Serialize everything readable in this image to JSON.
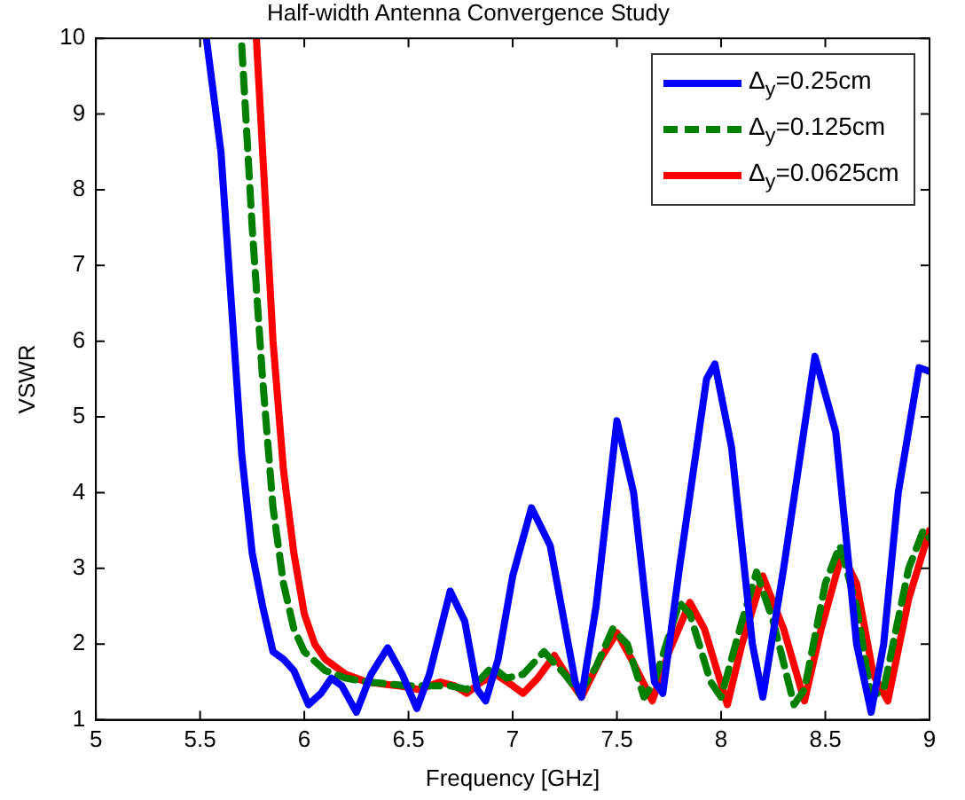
{
  "chart_data": {
    "type": "line",
    "title": "Half-width Antenna Convergence Study",
    "xlabel": "Frequency [GHz]",
    "ylabel": "VSWR",
    "xlim": [
      5,
      9
    ],
    "xticks": [
      5,
      5.5,
      6,
      6.5,
      7,
      7.5,
      8,
      8.5,
      9
    ],
    "ylim": [
      1,
      10
    ],
    "yticks": [
      1,
      2,
      3,
      4,
      5,
      6,
      7,
      8,
      9,
      10
    ],
    "grid": false,
    "legend": "top right",
    "marker": "none",
    "series": [
      {
        "name": "Δ$_{y}$=0.25cm",
        "color": "#0000ff",
        "line_style": "solid",
        "x": [
          5.53,
          5.6,
          5.65,
          5.7,
          5.75,
          5.8,
          5.85,
          5.9,
          5.95,
          6.02,
          6.08,
          6.13,
          6.18,
          6.25,
          6.32,
          6.4,
          6.47,
          6.54,
          6.6,
          6.7,
          6.77,
          6.83,
          6.87,
          6.93,
          7.0,
          7.09,
          7.18,
          7.3,
          7.33,
          7.4,
          7.5,
          7.58,
          7.68,
          7.72,
          7.8,
          7.93,
          7.97,
          8.05,
          8.15,
          8.2,
          8.3,
          8.45,
          8.55,
          8.65,
          8.72,
          8.78,
          8.85,
          8.95,
          9
        ],
        "values": [
          10,
          8.5,
          6.5,
          4.5,
          3.2,
          2.5,
          1.9,
          1.8,
          1.65,
          1.2,
          1.35,
          1.55,
          1.45,
          1.1,
          1.6,
          1.95,
          1.6,
          1.15,
          1.6,
          2.7,
          2.3,
          1.4,
          1.25,
          1.8,
          2.9,
          3.8,
          3.3,
          1.5,
          1.3,
          2.5,
          4.95,
          4,
          1.5,
          1.35,
          3,
          5.5,
          5.7,
          4.6,
          2,
          1.3,
          3,
          5.8,
          4.8,
          2,
          1.1,
          2,
          4,
          5.65,
          5.6
        ]
      },
      {
        "name": "Δ$_{y}$=0.125cm",
        "color": "#007f00",
        "line_style": "dashed",
        "x": [
          5.7,
          5.75,
          5.8,
          5.85,
          5.9,
          5.95,
          6.0,
          6.1,
          6.2,
          6.3,
          6.5,
          6.7,
          6.78,
          6.85,
          6.9,
          6.97,
          7.05,
          7.15,
          7.25,
          7.32,
          7.4,
          7.48,
          7.55,
          7.63,
          7.68,
          7.8,
          7.85,
          7.95,
          8.0,
          8.1,
          8.17,
          8.25,
          8.35,
          8.4,
          8.5,
          8.57,
          8.65,
          8.72,
          8.78,
          8.9,
          8.97,
          9
        ],
        "values": [
          9.9,
          7.5,
          5.5,
          3.8,
          2.8,
          2.2,
          1.9,
          1.65,
          1.55,
          1.5,
          1.45,
          1.45,
          1.4,
          1.55,
          1.7,
          1.55,
          1.6,
          1.9,
          1.6,
          1.35,
          1.7,
          2.2,
          2,
          1.3,
          1.5,
          2.55,
          2.4,
          1.5,
          1.3,
          2.3,
          2.95,
          2.3,
          1.2,
          1.4,
          2.8,
          3.3,
          2.5,
          1.3,
          1.4,
          3,
          3.5,
          3.4
        ]
      },
      {
        "name": "Δ$_{y}$=0.0625cm",
        "color": "#ff0000",
        "line_style": "solid",
        "x": [
          5.77,
          5.8,
          5.85,
          5.9,
          5.95,
          6.0,
          6.05,
          6.1,
          6.2,
          6.3,
          6.45,
          6.55,
          6.65,
          6.72,
          6.78,
          6.85,
          6.92,
          7.0,
          7.05,
          7.12,
          7.2,
          7.28,
          7.33,
          7.42,
          7.5,
          7.57,
          7.67,
          7.75,
          7.85,
          7.92,
          8.03,
          8.1,
          8.2,
          8.3,
          8.4,
          8.48,
          8.58,
          8.65,
          8.73,
          8.8,
          8.9,
          9
        ],
        "values": [
          10,
          8.5,
          6,
          4.3,
          3.2,
          2.4,
          2.0,
          1.8,
          1.6,
          1.5,
          1.45,
          1.4,
          1.5,
          1.45,
          1.35,
          1.5,
          1.6,
          1.45,
          1.35,
          1.55,
          1.85,
          1.5,
          1.3,
          1.8,
          2.15,
          1.8,
          1.25,
          1.9,
          2.55,
          2.2,
          1.2,
          2.0,
          2.9,
          2.2,
          1.25,
          2.2,
          3.2,
          2.8,
          1.6,
          1.25,
          2.6,
          3.5
        ]
      }
    ]
  }
}
